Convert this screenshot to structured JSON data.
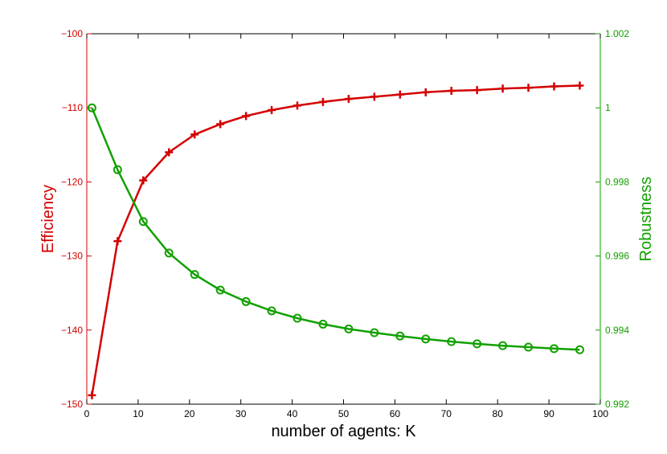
{
  "chart_data": {
    "type": "line",
    "title": "",
    "xlabel": "number of agents: K",
    "xlim": [
      0,
      100
    ],
    "xticks": [
      0,
      10,
      20,
      30,
      40,
      50,
      60,
      70,
      80,
      90,
      100
    ],
    "x": [
      1,
      6,
      11,
      16,
      21,
      26,
      31,
      36,
      41,
      46,
      51,
      56,
      61,
      66,
      71,
      76,
      81,
      86,
      91,
      96
    ],
    "grid": false,
    "legend": "none",
    "left_axis": {
      "label": "Efficiency",
      "color": "#d40000",
      "ylim": [
        -150,
        -100
      ],
      "ticks": [
        -150,
        -140,
        -130,
        -120,
        -110,
        -100
      ],
      "tick_labels": [
        "−150",
        "−140",
        "−130",
        "−120",
        "−110",
        "−100"
      ]
    },
    "right_axis": {
      "label": "Robustness",
      "color": "#12a000",
      "ylim": [
        0.992,
        1.002
      ],
      "ticks": [
        0.992,
        0.994,
        0.996,
        0.998,
        1.0,
        1.002
      ],
      "tick_labels": [
        "0.992",
        "0.994",
        "0.996",
        "0.998",
        "1",
        "1.002"
      ]
    },
    "series": [
      {
        "axis": "left",
        "marker": "plus",
        "color": "#d40000",
        "values": [
          -148.8,
          -128.0,
          -119.8,
          -116.0,
          -113.6,
          -112.2,
          -111.1,
          -110.3,
          -109.7,
          -109.2,
          -108.8,
          -108.5,
          -108.2,
          -107.9,
          -107.7,
          -107.6,
          -107.4,
          -107.3,
          -107.1,
          -107.0
        ]
      },
      {
        "axis": "right",
        "marker": "circle",
        "color": "#12a000",
        "values": [
          1.0,
          0.99833,
          0.99693,
          0.99608,
          0.9955,
          0.99508,
          0.99477,
          0.99452,
          0.99432,
          0.99416,
          0.99403,
          0.99393,
          0.99384,
          0.99376,
          0.99369,
          0.99363,
          0.99358,
          0.99354,
          0.9935,
          0.99347
        ]
      }
    ]
  }
}
